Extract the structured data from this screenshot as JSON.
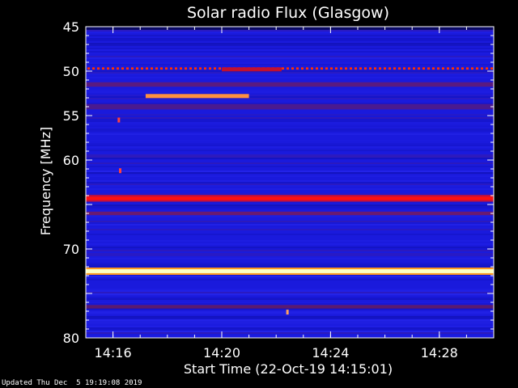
{
  "chart_data": {
    "type": "heatmap",
    "title": "Solar radio Flux (Glasgow)",
    "xlabel": "Start Time (22-Oct-19 14:15:01)",
    "ylabel": "Frequency [MHz]",
    "x_unit": "minutes after 14:15:01",
    "xlim": [
      0,
      15
    ],
    "ylim": [
      45,
      80
    ],
    "y_axis_inverted": true,
    "x_ticks": [
      {
        "value": 1.0,
        "label": "14:16"
      },
      {
        "value": 5.0,
        "label": "14:20"
      },
      {
        "value": 9.0,
        "label": "14:24"
      },
      {
        "value": 13.0,
        "label": "14:28"
      }
    ],
    "y_ticks": [
      {
        "value": 45,
        "label": "45"
      },
      {
        "value": 50,
        "label": "50"
      },
      {
        "value": 55,
        "label": "55"
      },
      {
        "value": 60,
        "label": "60"
      },
      {
        "value": 65,
        "label": ""
      },
      {
        "value": 70,
        "label": "70"
      },
      {
        "value": 75,
        "label": ""
      },
      {
        "value": 80,
        "label": "80"
      }
    ],
    "background_color": "#1a1adc",
    "colormap": [
      "#05052e",
      "#1a1adc",
      "#6b1a8c",
      "#c0103a",
      "#ff2000",
      "#ff8c00",
      "#ffffc0"
    ],
    "bands": [
      {
        "freq_mhz": 45.2,
        "width_mhz": 0.3,
        "intensity": "low",
        "color": "#0a0a60"
      },
      {
        "freq_mhz": 49.7,
        "width_mhz": 0.25,
        "intensity": "high",
        "color": "#ff3000",
        "pattern": "dotted"
      },
      {
        "freq_mhz": 51.5,
        "width_mhz": 0.5,
        "intensity": "medium",
        "color": "#5a1a80"
      },
      {
        "freq_mhz": 54.0,
        "width_mhz": 0.6,
        "intensity": "medium",
        "color": "#4a1a90"
      },
      {
        "freq_mhz": 64.3,
        "width_mhz": 0.4,
        "intensity": "very high",
        "color": "#ff1010"
      },
      {
        "freq_mhz": 66.0,
        "width_mhz": 0.4,
        "intensity": "medium",
        "color": "#6a1a70"
      },
      {
        "freq_mhz": 72.5,
        "width_mhz": 0.45,
        "intensity": "saturated",
        "color": "#ffffc0"
      },
      {
        "freq_mhz": 76.5,
        "width_mhz": 0.4,
        "intensity": "medium",
        "color": "#5a1a70"
      }
    ],
    "segments": [
      {
        "freq_mhz": 52.8,
        "t_start": 2.2,
        "t_end": 6.0,
        "color": "#ff9040"
      },
      {
        "freq_mhz": 49.8,
        "t_start": 5.0,
        "t_end": 7.2,
        "color": "#c01030"
      }
    ],
    "blips": [
      {
        "freq_mhz": 77.1,
        "t": 7.4,
        "color": "#ffa060"
      },
      {
        "freq_mhz": 55.5,
        "t": 1.2,
        "color": "#ff4040"
      },
      {
        "freq_mhz": 61.2,
        "t": 1.25,
        "color": "#ff4040"
      }
    ]
  },
  "footer": {
    "updated": "Updated Thu Dec  5 19:19:08 2019"
  }
}
